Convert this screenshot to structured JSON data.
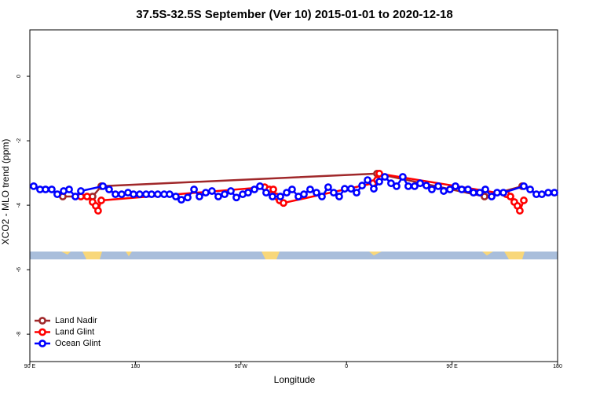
{
  "chart_data": {
    "type": "line",
    "title": "37.5S-32.5S September (Ver 10)   2015-01-01 to 2020-12-18",
    "x_label": "Longitude",
    "y_label": "XCO2 - MLO trend (ppm)",
    "xlim": [
      90,
      540
    ],
    "ylim": [
      -8.85,
      1.44
    ],
    "xticks": [
      {
        "value": 90,
        "label": "90 E"
      },
      {
        "value": 180,
        "label": "180"
      },
      {
        "value": 270,
        "label": "90 W"
      },
      {
        "value": 360,
        "label": "0"
      },
      {
        "value": 450,
        "label": "90 E"
      },
      {
        "value": 540,
        "label": "180"
      }
    ],
    "yticks": [
      -8,
      -6,
      -4,
      -2,
      0
    ],
    "legend": "bottom-left",
    "series": [
      {
        "name": "Land Nadir",
        "color": "#a0282a",
        "x": [
          118.1,
          143.5,
          150.9,
          386,
          477.7,
          509.8
        ],
        "values": [
          -3.73,
          -3.73,
          -3.41,
          -3.02,
          -3.73,
          -3.41
        ]
      },
      {
        "name": "Land Glint",
        "color": "#ff0000",
        "x": [
          133.5,
          138.8,
          143.5,
          146.2,
          148.2,
          150.9,
          290.2,
          294.2,
          297.6,
          300.3,
          303,
          306.3,
          382.6,
          386,
          388,
          496.4,
          499.8,
          503.1,
          505.8,
          507.8,
          511.2
        ],
        "values": [
          -3.73,
          -3.73,
          -3.9,
          -4.02,
          -4.17,
          -3.85,
          -3.44,
          -3.51,
          -3.51,
          -3.73,
          -3.85,
          -3.93,
          -3.32,
          -3.22,
          -3.02,
          -3.66,
          -3.73,
          -3.9,
          -4.02,
          -4.17,
          -3.85
        ]
      },
      {
        "name": "Ocean Glint",
        "color": "#0000ff",
        "x": [
          93.3,
          98.7,
          103.4,
          108.7,
          113.4,
          118.8,
          123.5,
          128.8,
          133.5,
          152.3,
          157.6,
          163,
          168.3,
          173.7,
          178.4,
          183.7,
          189.1,
          193.8,
          199.1,
          204.5,
          209.2,
          214.5,
          219.2,
          224.6,
          230,
          234.6,
          240,
          245.3,
          250.7,
          256.1,
          261.4,
          266.1,
          271.5,
          276.1,
          281.5,
          286.2,
          291.5,
          296.9,
          303.6,
          309,
          313.6,
          319,
          323.7,
          329,
          334.4,
          339.1,
          344.4,
          349.1,
          353.8,
          358.5,
          363.9,
          368.6,
          373.3,
          378,
          383.3,
          388,
          392.7,
          398,
          402.7,
          408,
          412.7,
          418.1,
          422.8,
          428.1,
          432.8,
          438.2,
          442.9,
          448.2,
          452.9,
          458.3,
          463.6,
          468.3,
          473.7,
          478.4,
          483.8,
          488.4,
          493.8,
          511.2,
          516.6,
          521.9,
          526.6,
          532,
          537.3
        ],
        "values": [
          -3.41,
          -3.51,
          -3.51,
          -3.51,
          -3.66,
          -3.56,
          -3.51,
          -3.73,
          -3.56,
          -3.41,
          -3.51,
          -3.66,
          -3.66,
          -3.61,
          -3.66,
          -3.66,
          -3.66,
          -3.66,
          -3.66,
          -3.66,
          -3.66,
          -3.73,
          -3.83,
          -3.76,
          -3.51,
          -3.73,
          -3.61,
          -3.56,
          -3.73,
          -3.66,
          -3.56,
          -3.76,
          -3.66,
          -3.61,
          -3.51,
          -3.41,
          -3.61,
          -3.73,
          -3.73,
          -3.61,
          -3.51,
          -3.73,
          -3.66,
          -3.51,
          -3.61,
          -3.73,
          -3.44,
          -3.61,
          -3.73,
          -3.49,
          -3.49,
          -3.61,
          -3.39,
          -3.22,
          -3.49,
          -3.27,
          -3.12,
          -3.32,
          -3.41,
          -3.12,
          -3.41,
          -3.41,
          -3.32,
          -3.39,
          -3.51,
          -3.41,
          -3.56,
          -3.51,
          -3.41,
          -3.51,
          -3.51,
          -3.61,
          -3.61,
          -3.51,
          -3.73,
          -3.61,
          -3.61,
          -3.41,
          -3.51,
          -3.66,
          -3.66,
          -3.61,
          -3.61
        ]
      }
    ]
  }
}
